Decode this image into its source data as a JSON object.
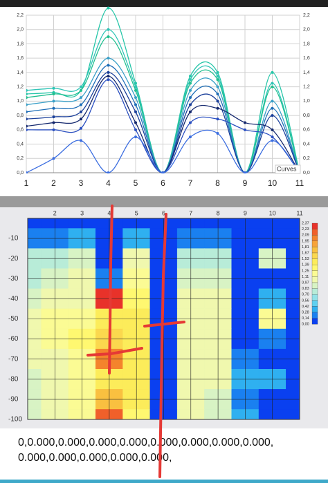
{
  "chart_data": [
    {
      "type": "line",
      "legend_title": "Curves",
      "x": [
        1,
        2,
        3,
        4,
        5,
        6,
        7,
        8,
        9,
        10,
        11
      ],
      "xlim": [
        1,
        11
      ],
      "xticks": [
        1,
        2,
        3,
        4,
        5,
        6,
        7,
        8,
        9,
        10,
        11
      ],
      "ylim": [
        0,
        2.2
      ],
      "yticks": [
        {
          "value": 0,
          "label": "0,0"
        },
        {
          "value": 0.2,
          "label": "0,2"
        },
        {
          "value": 0.4,
          "label": "0,4"
        },
        {
          "value": 0.6,
          "label": "0,6"
        },
        {
          "value": 0.8,
          "label": "0,8"
        },
        {
          "value": 1.0,
          "label": "1,0"
        },
        {
          "value": 1.2,
          "label": "1,2"
        },
        {
          "value": 1.4,
          "label": "1,4"
        },
        {
          "value": 1.6,
          "label": "1,6"
        },
        {
          "value": 1.8,
          "label": "1,8"
        },
        {
          "value": 2.0,
          "label": "2,0"
        },
        {
          "value": 2.2,
          "label": "2,2"
        }
      ],
      "grid": true,
      "series": [
        {
          "color": "#26c6a8",
          "values": [
            1.1,
            1.12,
            1.15,
            2.3,
            1.25,
            0,
            1.35,
            1.4,
            0,
            1.4,
            0
          ]
        },
        {
          "color": "#2ec4b6",
          "values": [
            1.15,
            1.18,
            1.2,
            2.0,
            1.2,
            0,
            1.3,
            1.35,
            0,
            1.25,
            0
          ]
        },
        {
          "color": "#1fbf8f",
          "values": [
            1.05,
            1.1,
            1.15,
            1.9,
            1.15,
            0,
            1.25,
            1.3,
            0,
            1.2,
            0
          ]
        },
        {
          "color": "#3aa0c8",
          "values": [
            0.95,
            1.0,
            1.05,
            1.6,
            1.05,
            0,
            1.15,
            1.2,
            0,
            1.0,
            0
          ]
        },
        {
          "color": "#1f6fb8",
          "values": [
            0.85,
            0.9,
            0.95,
            1.5,
            0.95,
            0,
            1.05,
            1.1,
            0,
            0.9,
            0
          ]
        },
        {
          "color": "#1a3f9a",
          "values": [
            0.75,
            0.78,
            0.85,
            1.4,
            0.85,
            0,
            0.95,
            1.0,
            0,
            0.8,
            0
          ]
        },
        {
          "color": "#14286e",
          "values": [
            0.65,
            0.7,
            0.75,
            1.35,
            0.7,
            0,
            0.85,
            0.9,
            0.7,
            0.6,
            0
          ]
        },
        {
          "color": "#2a4fc0",
          "values": [
            0.6,
            0.6,
            0.62,
            1.3,
            0.6,
            0,
            0.7,
            0.75,
            0.6,
            0.5,
            0
          ]
        },
        {
          "color": "#3c6ee0",
          "values": [
            0,
            0.2,
            0.45,
            0,
            0.5,
            0,
            0.5,
            0.55,
            0,
            0.45,
            0
          ]
        }
      ]
    },
    {
      "type": "contour",
      "x": [
        1,
        2,
        3,
        4,
        5,
        6,
        7,
        8,
        9,
        10,
        11
      ],
      "y": [
        0,
        -10,
        -20,
        -30,
        -40,
        -50,
        -60,
        -70,
        -80,
        -90,
        -100
      ],
      "xlim": [
        1,
        11
      ],
      "xticks": [
        2,
        3,
        4,
        5,
        6,
        7,
        8,
        9,
        10,
        11
      ],
      "ylim": [
        -100,
        0
      ],
      "yticks": [
        -10,
        -20,
        -30,
        -40,
        -50,
        -60,
        -70,
        -80,
        -90,
        -100
      ],
      "z": [
        [
          0,
          0,
          0,
          0,
          0,
          0,
          0,
          0,
          0,
          0,
          0
        ],
        [
          0.2,
          0.2,
          0.3,
          0,
          0.3,
          0,
          0.2,
          0.2,
          0,
          0,
          0
        ],
        [
          0.7,
          0.8,
          0.9,
          0,
          1.1,
          0,
          0.8,
          0.8,
          0,
          0.9,
          0
        ],
        [
          0.8,
          0.9,
          1.0,
          0.2,
          1.2,
          0,
          0.9,
          0.9,
          0,
          0,
          0
        ],
        [
          0.9,
          1.0,
          1.1,
          2.3,
          1.3,
          0,
          1.0,
          1.0,
          0,
          0.3,
          0
        ],
        [
          1.1,
          1.2,
          1.2,
          1.4,
          1.4,
          0,
          1.1,
          1.0,
          0,
          1.2,
          0
        ],
        [
          1.0,
          1.2,
          1.3,
          1.6,
          1.4,
          0,
          1.1,
          1.0,
          0,
          0.2,
          0
        ],
        [
          1.0,
          1.1,
          1.2,
          2.0,
          1.5,
          0,
          1.1,
          1.0,
          0.2,
          0,
          0
        ],
        [
          0.9,
          1.0,
          1.2,
          1.5,
          1.5,
          0,
          1.1,
          1.0,
          0.3,
          0.3,
          0
        ],
        [
          0.9,
          1.0,
          1.2,
          1.8,
          1.4,
          0,
          1.0,
          0.9,
          0.2,
          0,
          0
        ],
        [
          0.9,
          1.0,
          1.2,
          2.2,
          1.3,
          0,
          1.0,
          0.9,
          0.3,
          0,
          0
        ]
      ],
      "colorbar": {
        "ticks": [
          {
            "value": 2.37,
            "label": "2,37"
          },
          {
            "value": 2.23,
            "label": "2,23"
          },
          {
            "value": 2.09,
            "label": "2,09"
          },
          {
            "value": 1.95,
            "label": "1,95"
          },
          {
            "value": 1.81,
            "label": "1,81"
          },
          {
            "value": 1.67,
            "label": "1,67"
          },
          {
            "value": 1.53,
            "label": "1,53"
          },
          {
            "value": 1.39,
            "label": "1,39"
          },
          {
            "value": 1.25,
            "label": "1,25"
          },
          {
            "value": 1.11,
            "label": "1,11"
          },
          {
            "value": 0.97,
            "label": "0,97"
          },
          {
            "value": 0.83,
            "label": "0,83"
          },
          {
            "value": 0.7,
            "label": "0,70"
          },
          {
            "value": 0.56,
            "label": "0,56"
          },
          {
            "value": 0.42,
            "label": "0,42"
          },
          {
            "value": 0.28,
            "label": "0,28"
          },
          {
            "value": 0.14,
            "label": "0,14"
          },
          {
            "value": 0,
            "label": "0,00"
          }
        ],
        "colors": [
          "#e8322a",
          "#f0602a",
          "#f4842c",
          "#f7a33a",
          "#f9c040",
          "#fbd84e",
          "#fcec5a",
          "#fff870",
          "#fbfb94",
          "#f0f8ae",
          "#d8f3c4",
          "#b8ecd8",
          "#92e2e8",
          "#5fd0f0",
          "#2fb0f0",
          "#1a80f0",
          "#0a40f0"
        ]
      }
    }
  ],
  "output": {
    "lines": [
      "0,0.000,0.000,0.000,0.000,0.000,0.000,0.000,0.000,",
      "0.000,0.000,0.000,0.000,0.000,"
    ]
  }
}
